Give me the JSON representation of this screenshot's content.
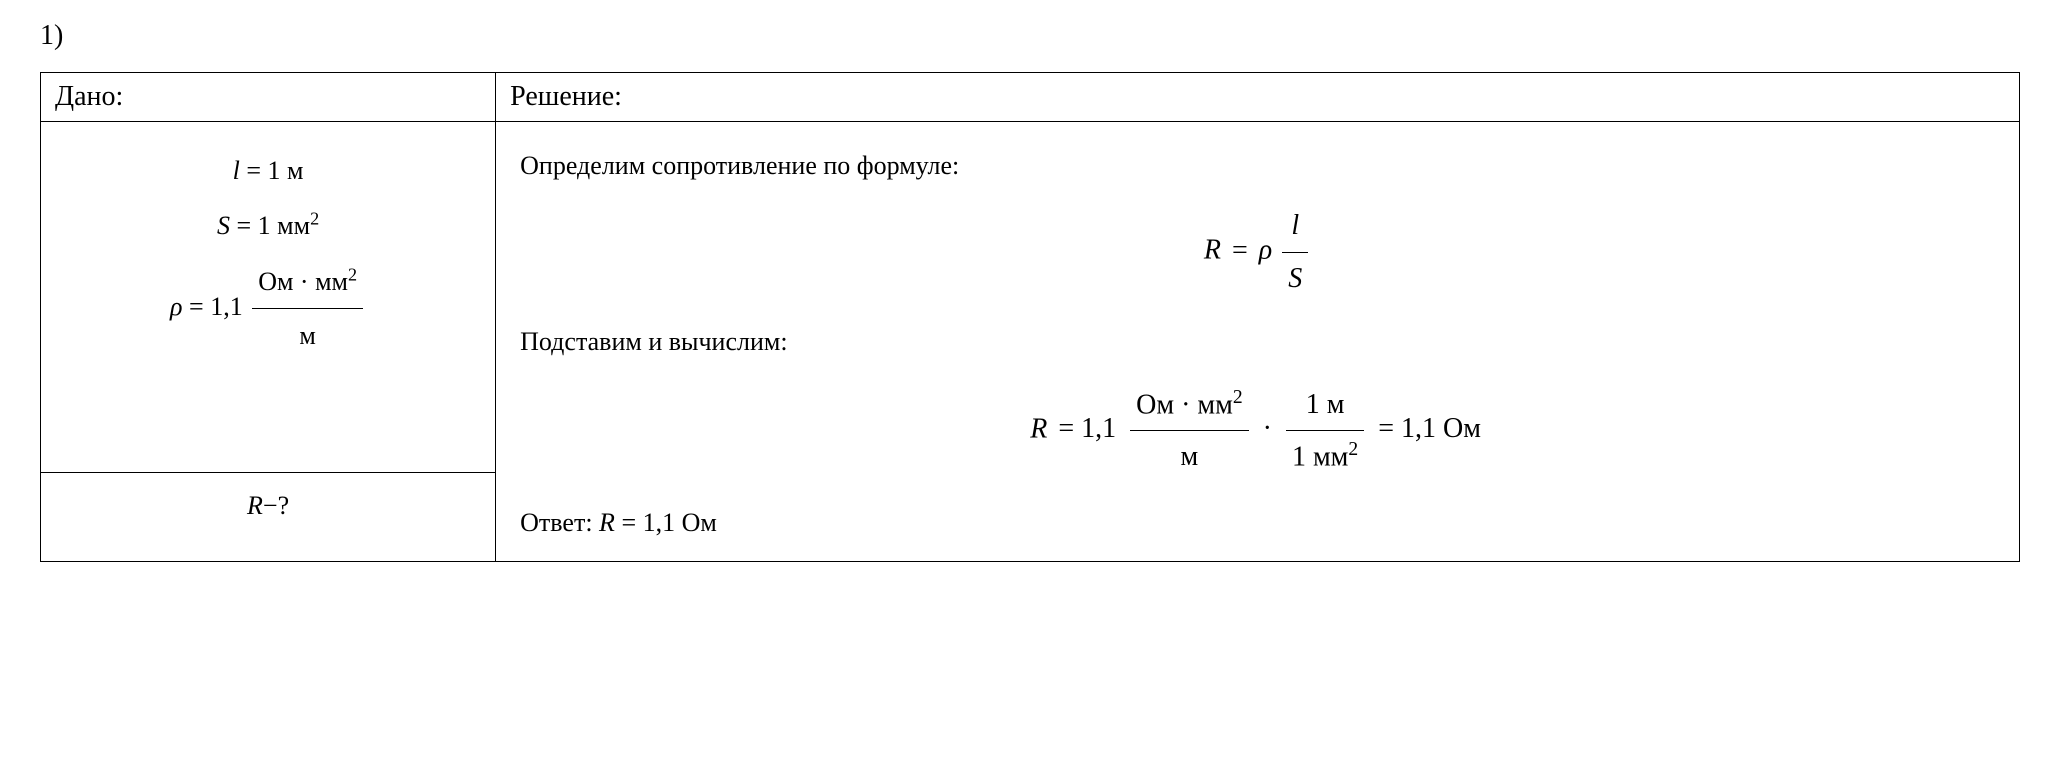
{
  "problem_number": "1)",
  "table": {
    "given_header": "Дано:",
    "solution_header": "Решение:",
    "given": {
      "l_var": "l",
      "l_eq": "= 1 м",
      "s_var": "S",
      "s_eq": "= 1 мм",
      "s_exp": "2",
      "rho_var": "ρ",
      "rho_eq": "= 1,1",
      "rho_num": "Ом · мм",
      "rho_num_exp": "2",
      "rho_den": "м"
    },
    "find": {
      "r_var": "R",
      "question": "−?"
    },
    "solution": {
      "line1": "Определим сопротивление по формуле:",
      "formula1": {
        "r_var": "R",
        "eq": "=",
        "rho_var": "ρ",
        "frac_num": "l",
        "frac_den": "S"
      },
      "line2": "Подставим и вычислим:",
      "formula2": {
        "r_var": "R",
        "eq1": "= 1,1",
        "f1_num": "Ом · мм",
        "f1_num_exp": "2",
        "f1_den": "м",
        "mult": "·",
        "f2_num": "1 м",
        "f2_den": "1 мм",
        "f2_den_exp": "2",
        "eq2": "= 1,1 Ом"
      },
      "answer_label": "Ответ:",
      "answer_r": "R",
      "answer_val": "= 1,1 Ом"
    }
  },
  "style": {
    "font_family": "Times New Roman",
    "font_size_body": 26,
    "font_size_number": 28,
    "border_color": "#000000",
    "background_color": "#ffffff",
    "text_color": "#000000",
    "border_width": 1.5
  }
}
